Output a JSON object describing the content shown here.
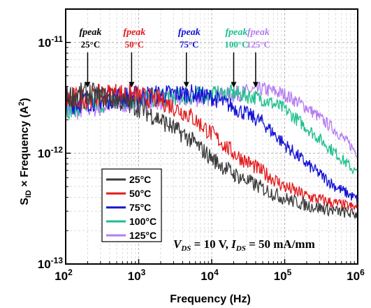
{
  "chart_data": {
    "type": "line",
    "xlabel": "Frequency (Hz)",
    "ylabel_main": "S",
    "ylabel_sub": "ID",
    "ylabel_rest": " × Frequency (A",
    "ylabel_sup": "2",
    "ylabel_end": ")",
    "xscale": "log",
    "yscale": "log",
    "xlim": [
      100,
      1000000
    ],
    "ylim": [
      1e-13,
      2e-11
    ],
    "grid": true,
    "x_ticks": [
      {
        "value": 100,
        "base": "10",
        "exp": "2"
      },
      {
        "value": 1000,
        "base": "10",
        "exp": "3"
      },
      {
        "value": 10000,
        "base": "10",
        "exp": "4"
      },
      {
        "value": 100000,
        "base": "10",
        "exp": "5"
      },
      {
        "value": 1000000,
        "base": "10",
        "exp": "6"
      }
    ],
    "y_ticks": [
      {
        "value": 1e-13,
        "base": "10",
        "exp": "-13"
      },
      {
        "value": 1e-12,
        "base": "10",
        "exp": "-12"
      },
      {
        "value": 1e-11,
        "base": "10",
        "exp": "-11"
      }
    ],
    "legend_position": "bottom-left",
    "series": [
      {
        "name": "25°C",
        "color": "#3a3a3a",
        "x": [
          100,
          200,
          500,
          1000,
          2000,
          5000,
          10000,
          20000,
          50000,
          100000,
          200000,
          500000,
          1000000
        ],
        "y": [
          3.2e-12,
          3.5e-12,
          3e-12,
          2.6e-12,
          2e-12,
          1.35e-12,
          9e-13,
          6.5e-13,
          4.8e-13,
          3.9e-13,
          3.4e-13,
          3e-13,
          2.8e-13
        ]
      },
      {
        "name": "50°C",
        "color": "#e31a1c",
        "x": [
          100,
          200,
          500,
          1000,
          2000,
          5000,
          10000,
          20000,
          50000,
          100000,
          200000,
          500000,
          1000000
        ],
        "y": [
          3e-12,
          3.2e-12,
          3.5e-12,
          3.3e-12,
          3e-12,
          2.2e-12,
          1.5e-12,
          1e-12,
          6.8e-13,
          5e-13,
          4.1e-13,
          3.5e-13,
          3.2e-13
        ]
      },
      {
        "name": "75°C",
        "color": "#1414d4",
        "x": [
          100,
          200,
          500,
          1000,
          2000,
          5000,
          10000,
          20000,
          50000,
          100000,
          200000,
          500000,
          1000000
        ],
        "y": [
          2.8e-12,
          3e-12,
          3.2e-12,
          3.3e-12,
          3.4e-12,
          3.5e-12,
          3.2e-12,
          2.6e-12,
          1.9e-12,
          1.2e-12,
          8e-13,
          5e-13,
          3.8e-13
        ]
      },
      {
        "name": "100°C",
        "color": "#1abf8c",
        "x": [
          100,
          200,
          500,
          1000,
          2000,
          5000,
          10000,
          20000,
          50000,
          100000,
          200000,
          500000,
          1000000
        ],
        "y": [
          2.6e-12,
          2.8e-12,
          3e-12,
          3.1e-12,
          3.2e-12,
          3.3e-12,
          3.4e-12,
          3.5e-12,
          3.1e-12,
          2.5e-12,
          1.7e-12,
          1e-12,
          6.5e-13
        ]
      },
      {
        "name": "125°C",
        "color": "#b57cf2",
        "x": [
          100,
          200,
          500,
          1000,
          2000,
          5000,
          10000,
          20000,
          50000,
          100000,
          200000,
          500000,
          1000000
        ],
        "y": [
          2.4e-12,
          2.6e-12,
          2.8e-12,
          2.9e-12,
          3e-12,
          3.1e-12,
          3.2e-12,
          3.4e-12,
          3.8e-12,
          3.4e-12,
          2.6e-12,
          1.6e-12,
          1e-12
        ]
      }
    ],
    "annotations": [
      {
        "label": "fpeak",
        "temp": "25°C",
        "x": 200,
        "y": 3.8e-12,
        "color": "#000000"
      },
      {
        "label": "fpeak",
        "temp": "50°C",
        "x": 800,
        "y": 3.8e-12,
        "color": "#e31a1c"
      },
      {
        "label": "fpeak",
        "temp": "75°C",
        "x": 4500,
        "y": 3.8e-12,
        "color": "#1414d4"
      },
      {
        "label": "fpeak",
        "temp": "100°C",
        "x": 20000,
        "y": 3.8e-12,
        "color": "#1abf8c"
      },
      {
        "label": "fpeak",
        "temp": "125°C",
        "x": 40000,
        "y": 3.8e-12,
        "color": "#b57cf2"
      }
    ],
    "condition": {
      "v_main": "V",
      "v_sub": "DS",
      "v_rest": " = 10 V, ",
      "i_main": "I",
      "i_sub": "DS",
      "i_rest": " = 50 mA/mm"
    }
  }
}
